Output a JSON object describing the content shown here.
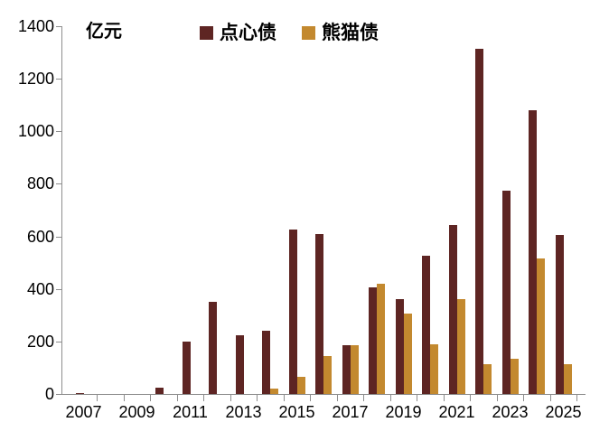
{
  "chart_data": {
    "type": "bar",
    "title": "",
    "unit_label": "亿元",
    "categories": [
      "2007",
      "2008",
      "2009",
      "2010",
      "2011",
      "2012",
      "2013",
      "2014",
      "2015",
      "2016",
      "2017",
      "2018",
      "2019",
      "2020",
      "2021",
      "2022",
      "2023",
      "2024",
      "2025"
    ],
    "x_tick_labels": [
      "2007",
      "2009",
      "2011",
      "2013",
      "2015",
      "2017",
      "2019",
      "2021",
      "2023",
      "2025"
    ],
    "series": [
      {
        "key": "dim-sum-bond",
        "name": "点心债",
        "color": "#5E2523",
        "values": [
          5,
          0,
          0,
          25,
          200,
          350,
          225,
          240,
          625,
          610,
          185,
          405,
          360,
          525,
          645,
          1315,
          775,
          1080,
          605
        ]
      },
      {
        "key": "panda-bond",
        "name": "熊猫债",
        "color": "#C3892F",
        "values": [
          0,
          0,
          0,
          0,
          0,
          0,
          0,
          20,
          65,
          145,
          185,
          420,
          305,
          190,
          360,
          115,
          135,
          515,
          115
        ]
      }
    ],
    "ylim": [
      0,
      1400
    ],
    "y_ticks": [
      0,
      200,
      400,
      600,
      800,
      1000,
      1200,
      1400
    ],
    "grid": false,
    "legend_position": "top-center",
    "axis_color": "#8e8e8e",
    "text_color": "#000000"
  }
}
